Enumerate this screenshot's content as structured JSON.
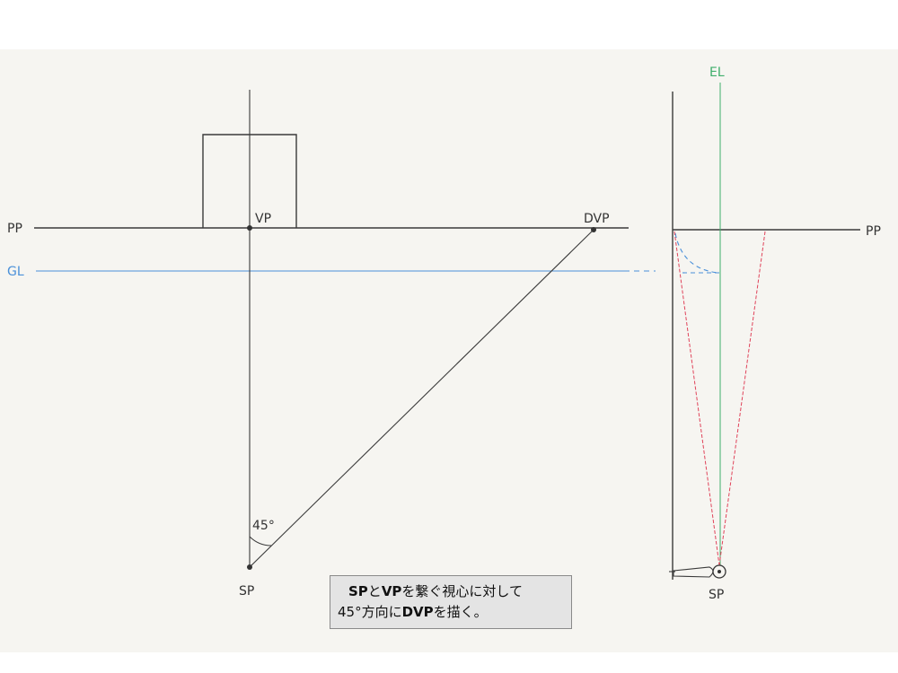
{
  "labels": {
    "pp_left": "PP",
    "pp_right": "PP",
    "gl": "GL",
    "vp": "VP",
    "dvp": "DVP",
    "angle": "45°",
    "sp_left": "SP",
    "sp_right": "SP",
    "el": "EL"
  },
  "caption": {
    "line1": [
      "SP",
      "と",
      "VP",
      "を繋ぐ視心に対して"
    ],
    "line2": [
      "45°方向に",
      "DVP",
      "を描く。"
    ]
  },
  "colors": {
    "pencil": "#3a3a3a",
    "ground_line": "#4a90d9",
    "eye_level": "#3fae6b",
    "sight_lines": "#e0435a",
    "paper": "#f6f5f1"
  }
}
